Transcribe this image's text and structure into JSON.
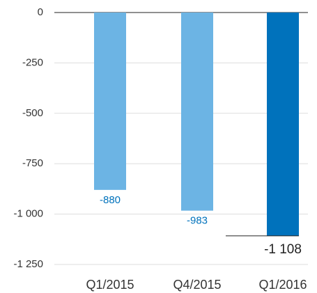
{
  "chart_data": {
    "type": "bar",
    "categories": [
      "Q1/2015",
      "Q4/2015",
      "Q1/2016"
    ],
    "values": [
      -880,
      -983,
      -1108
    ],
    "value_labels": [
      "-880",
      "-983",
      "-1 108"
    ],
    "colors": [
      "#6cb4e4",
      "#6cb4e4",
      "#0072bc"
    ],
    "ylim": [
      -1250,
      0
    ],
    "yticks": [
      0,
      -250,
      -500,
      -750,
      {
        "value": -1000,
        "label": "-1 000"
      },
      {
        "value": -1250,
        "label": "-1 250"
      }
    ],
    "grid": true
  }
}
